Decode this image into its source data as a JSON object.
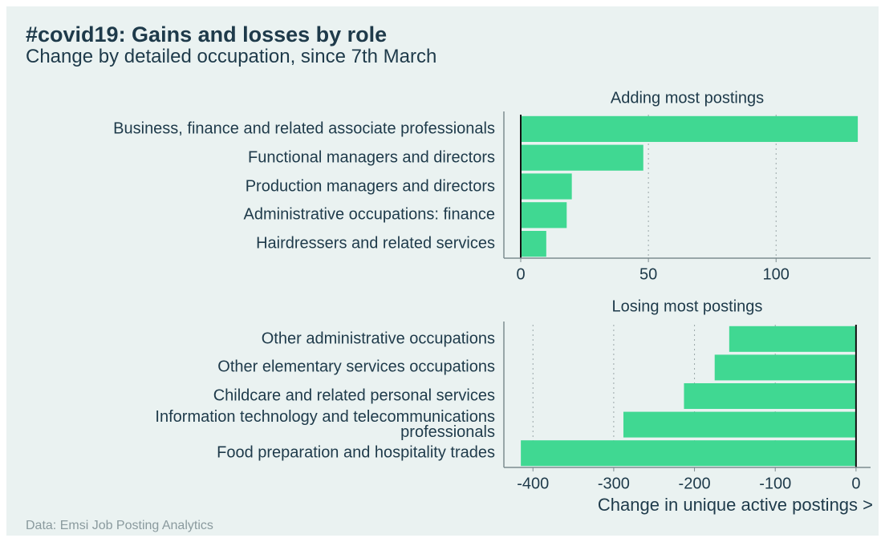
{
  "title": "#covid19: Gains and losses by role",
  "subtitle": "Change by detailed occupation, since 7th March",
  "source": "Data: Emsi Job Posting Analytics",
  "chart_data": [
    {
      "type": "bar",
      "orientation": "horizontal",
      "title": "Adding most postings",
      "categories": [
        "Business, finance and related associate professionals",
        "Functional managers and directors",
        "Production managers and directors",
        "Administrative occupations: finance",
        "Hairdressers and related services"
      ],
      "values": [
        132,
        48,
        20,
        18,
        10
      ],
      "color": "#40d892",
      "xlim": [
        -6.6,
        137
      ],
      "xticks": [
        0,
        50,
        100
      ],
      "grid": true
    },
    {
      "type": "bar",
      "orientation": "horizontal",
      "title": "Losing most postings",
      "categories": [
        "Other administrative occupations",
        "Other elementary services occupations",
        "Childcare and related personal services",
        "Information technology and telecommunications professionals",
        "Food preparation and hospitality trades"
      ],
      "values": [
        -157,
        -175,
        -213,
        -288,
        -415
      ],
      "color": "#40d892",
      "xlim": [
        -436,
        18
      ],
      "xticks": [
        -400,
        -300,
        -200,
        -100,
        0
      ],
      "grid": true,
      "xlabel": "Change in unique active postings >"
    }
  ]
}
